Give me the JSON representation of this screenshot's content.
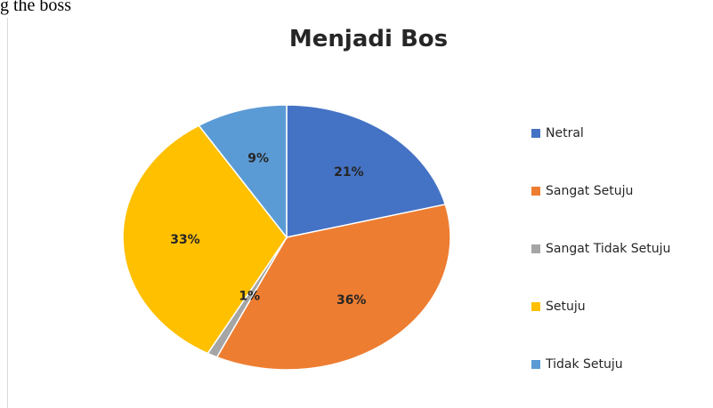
{
  "document_text": "g the boss",
  "chart_data": {
    "type": "pie",
    "title": "Menjadi Bos",
    "categories": [
      "Netral",
      "Sangat Setuju",
      "Sangat Tidak Setuju",
      "Setuju",
      "Tidak Setuju"
    ],
    "values": [
      21,
      36,
      1,
      33,
      9
    ],
    "value_labels": [
      "21%",
      "36%",
      "1%",
      "33%",
      "9%"
    ],
    "colors": [
      "#4472c4",
      "#ed7d31",
      "#a5a5a5",
      "#ffc000",
      "#5b9bd5"
    ],
    "legend": "right"
  }
}
